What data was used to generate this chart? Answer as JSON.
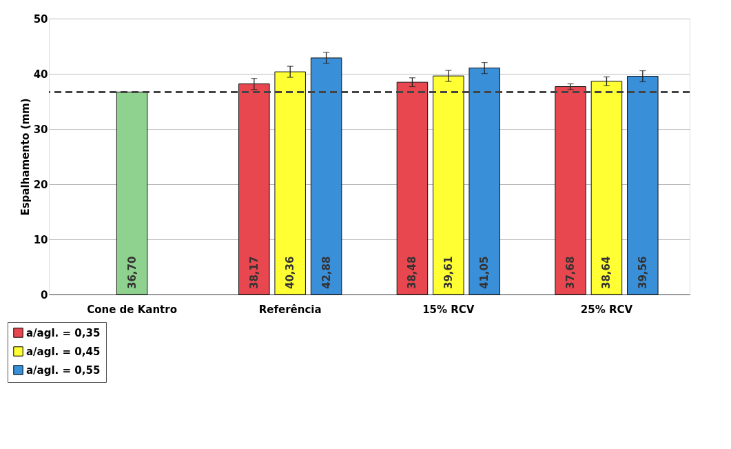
{
  "chart_data": {
    "type": "bar",
    "ylabel": "Espalhamento (mm)",
    "categories": [
      "Cone de Kantro",
      "Referência",
      "15% RCV",
      "25% RCV"
    ],
    "series": [
      {
        "color": "#8fd18f",
        "values": [
          36.7,
          null,
          null,
          null
        ],
        "value_labels": [
          "36,70",
          null,
          null,
          null
        ]
      },
      {
        "name": "a/agl. = 0,35",
        "color": "#e8474f",
        "values": [
          null,
          38.17,
          38.48,
          37.68
        ],
        "value_labels": [
          null,
          "38,17",
          "38,48",
          "37,68"
        ],
        "errors": [
          null,
          1.0,
          0.8,
          0.5
        ]
      },
      {
        "name": "a/agl. = 0,45",
        "color": "#ffff33",
        "values": [
          null,
          40.36,
          39.61,
          38.64
        ],
        "value_labels": [
          null,
          "40,36",
          "39,61",
          "38,64"
        ],
        "errors": [
          null,
          1.0,
          1.0,
          0.8
        ]
      },
      {
        "name": "a/agl. = 0,55",
        "color": "#3a8fd9",
        "values": [
          null,
          42.88,
          41.05,
          39.56
        ],
        "value_labels": [
          null,
          "42,88",
          "41,05",
          "39,56"
        ],
        "errors": [
          null,
          1.0,
          1.0,
          1.0
        ]
      }
    ],
    "ylim": [
      0,
      50
    ],
    "yticks": [
      0,
      10,
      20,
      30,
      40,
      50
    ],
    "grid": "y",
    "legend": "bottom left",
    "ref_lines": [
      {
        "axis": "y",
        "value": 36.7,
        "label": null,
        "color": "#444444",
        "line_style": "dashed"
      }
    ]
  }
}
